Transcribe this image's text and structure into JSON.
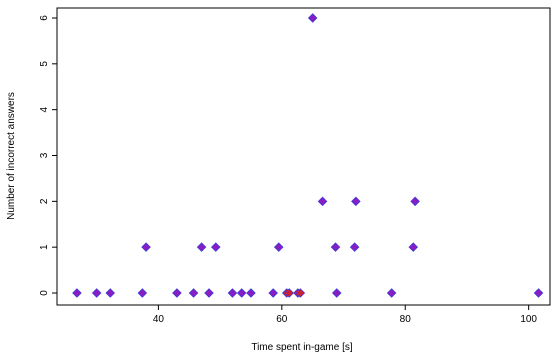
{
  "chart_data": {
    "type": "scatter",
    "title": "",
    "xlabel": "Time spent in-game [s]",
    "ylabel": "Number of incorrect answers",
    "xlim": [
      26,
      102
    ],
    "ylim": [
      0,
      6
    ],
    "xticks": [
      40,
      60,
      80,
      100
    ],
    "yticks": [
      0,
      1,
      2,
      3,
      4,
      5,
      6
    ],
    "grid": false,
    "marker_fill": "#8a1cc4",
    "marker_edge": "#3a3ad8",
    "marker_alt": "#d21f2e",
    "points": [
      {
        "x": 26.8,
        "y": 0
      },
      {
        "x": 30,
        "y": 0
      },
      {
        "x": 32.2,
        "y": 0
      },
      {
        "x": 37.4,
        "y": 0
      },
      {
        "x": 38,
        "y": 1
      },
      {
        "x": 43,
        "y": 0
      },
      {
        "x": 45.7,
        "y": 0
      },
      {
        "x": 47,
        "y": 1
      },
      {
        "x": 48.2,
        "y": 0
      },
      {
        "x": 49.3,
        "y": 1
      },
      {
        "x": 52,
        "y": 0
      },
      {
        "x": 53.5,
        "y": 0
      },
      {
        "x": 55,
        "y": 0
      },
      {
        "x": 58.6,
        "y": 0
      },
      {
        "x": 59.5,
        "y": 1
      },
      {
        "x": 60.8,
        "y": 0
      },
      {
        "x": 61.2,
        "y": 0
      },
      {
        "x": 62.6,
        "y": 0
      },
      {
        "x": 63,
        "y": 0
      },
      {
        "x": 65,
        "y": 6
      },
      {
        "x": 66.6,
        "y": 2
      },
      {
        "x": 68.7,
        "y": 1
      },
      {
        "x": 68.9,
        "y": 0
      },
      {
        "x": 71.8,
        "y": 1
      },
      {
        "x": 72,
        "y": 2
      },
      {
        "x": 77.8,
        "y": 0
      },
      {
        "x": 81.3,
        "y": 1
      },
      {
        "x": 81.6,
        "y": 2
      },
      {
        "x": 101.6,
        "y": 0
      }
    ]
  }
}
